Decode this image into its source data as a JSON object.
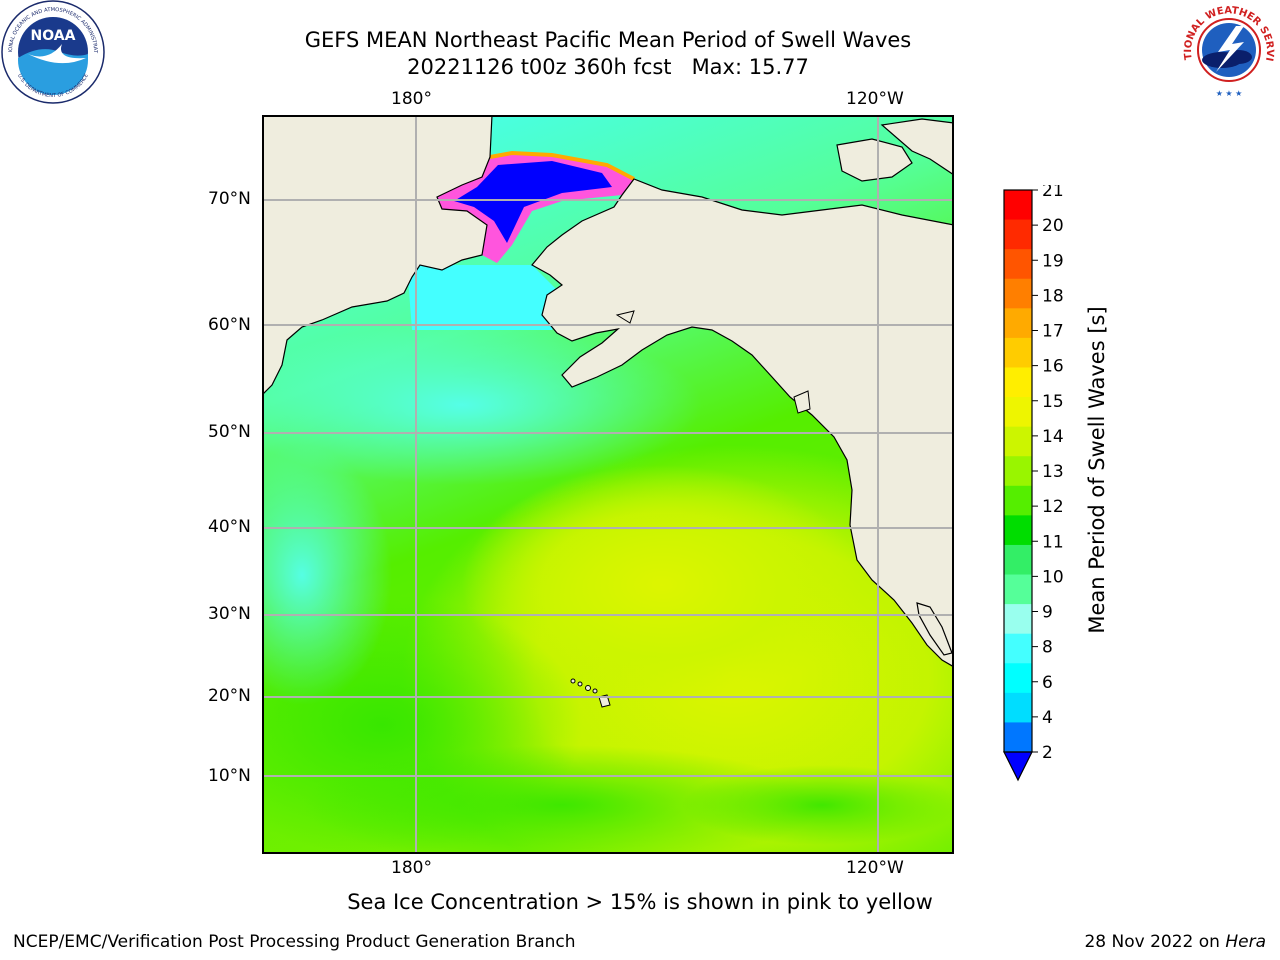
{
  "header": {
    "title_line1": "GEFS MEAN Northeast Pacific Mean Period of Swell Waves",
    "title_line2": "20221126 t00z 360h fcst   Max: 15.77"
  },
  "map": {
    "lon_ticks_top": [
      "180°",
      "120°W"
    ],
    "lon_ticks_bottom": [
      "180°",
      "120°W"
    ],
    "lat_ticks": [
      "70°N",
      "60°N",
      "50°N",
      "40°N",
      "30°N",
      "20°N",
      "10°N"
    ],
    "grid": true,
    "land_color": "#efedde"
  },
  "colorbar": {
    "label": "Mean Period of Swell Waves [s]",
    "tick_labels": [
      "21",
      "20",
      "19",
      "18",
      "17",
      "16",
      "15",
      "14",
      "13",
      "12",
      "11",
      "10",
      "9",
      "8",
      "6",
      "4",
      "2"
    ],
    "colors_top_to_bottom": [
      "#ff0000",
      "#ff2a00",
      "#ff5500",
      "#ff7f00",
      "#ffaa00",
      "#ffcc00",
      "#ffee00",
      "#eef500",
      "#ccf500",
      "#99f500",
      "#55ee00",
      "#00dd00",
      "#33ee66",
      "#55ff99",
      "#99ffee",
      "#44ffff",
      "#00ffff",
      "#00ddff",
      "#0077ff"
    ],
    "extend_color": "#0000ff"
  },
  "note": "Sea Ice Concentration > 15% is shown in pink to yellow",
  "footer": {
    "left": "NCEP/EMC/Verification Post Processing Product Generation Branch",
    "right_prefix": "28 Nov 2022 on ",
    "right_machine": "Hera"
  },
  "logos": {
    "noaa_text": "NOAA",
    "noaa_ring_top": "NATIONAL OCEANIC AND ATMOSPHERIC ADMINISTRATION",
    "noaa_ring_bottom": "U.S. DEPARTMENT OF COMMERCE",
    "nws_ring": "NATIONAL WEATHER SERVICE"
  }
}
